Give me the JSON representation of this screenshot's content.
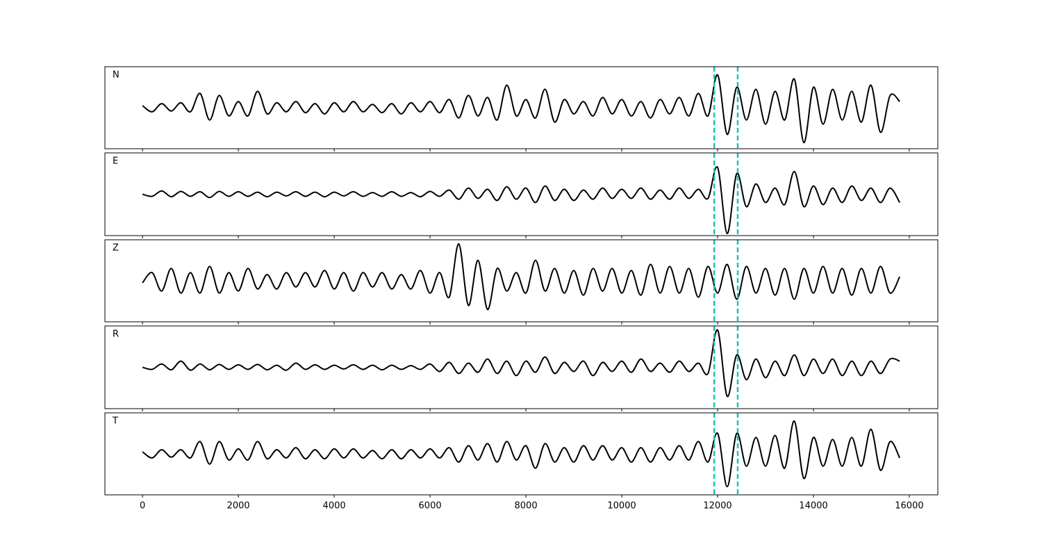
{
  "chart_data": {
    "type": "line",
    "x": [
      0,
      200,
      400,
      600,
      800,
      1000,
      1200,
      1400,
      1600,
      1800,
      2000,
      2200,
      2400,
      2600,
      2800,
      3000,
      3200,
      3400,
      3600,
      3800,
      4000,
      4200,
      4400,
      4600,
      4800,
      5000,
      5200,
      5400,
      5600,
      5800,
      6000,
      6200,
      6400,
      6600,
      6800,
      7000,
      7200,
      7400,
      7600,
      7800,
      8000,
      8200,
      8400,
      8600,
      8800,
      9000,
      9200,
      9400,
      9600,
      9800,
      10000,
      10200,
      10400,
      10600,
      10800,
      11000,
      11200,
      11400,
      11600,
      11800,
      12000,
      12200,
      12400,
      12600,
      12800,
      13000,
      13200,
      13400,
      13600,
      13800,
      14000,
      14200,
      14400,
      14600,
      14800,
      15000,
      15200,
      15400,
      15600,
      15800
    ],
    "series": [
      {
        "name": "N",
        "color": "#000000",
        "values": [
          0.05,
          -0.1,
          0.1,
          -0.08,
          0.12,
          -0.1,
          0.35,
          -0.3,
          0.3,
          -0.2,
          0.15,
          -0.2,
          0.4,
          -0.15,
          0.12,
          -0.1,
          0.15,
          -0.12,
          0.1,
          -0.15,
          0.12,
          -0.1,
          0.15,
          -0.1,
          0.08,
          -0.12,
          0.1,
          -0.15,
          0.12,
          -0.1,
          0.15,
          -0.12,
          0.2,
          -0.25,
          0.3,
          -0.2,
          0.25,
          -0.3,
          0.55,
          -0.2,
          0.2,
          -0.25,
          0.45,
          -0.35,
          0.2,
          -0.15,
          0.15,
          -0.2,
          0.25,
          -0.15,
          0.2,
          -0.2,
          0.15,
          -0.25,
          0.2,
          -0.15,
          0.25,
          -0.2,
          0.35,
          -0.2,
          0.8,
          -0.65,
          0.5,
          -0.3,
          0.45,
          -0.4,
          0.4,
          -0.3,
          0.7,
          -0.85,
          0.5,
          -0.4,
          0.45,
          -0.3,
          0.4,
          -0.35,
          0.55,
          -0.6,
          0.3,
          0.15
        ]
      },
      {
        "name": "E",
        "color": "#000000",
        "values": [
          0.0,
          -0.05,
          0.08,
          -0.06,
          0.07,
          -0.05,
          0.06,
          -0.08,
          0.07,
          -0.05,
          0.06,
          -0.05,
          0.05,
          -0.06,
          0.05,
          -0.04,
          0.06,
          -0.05,
          0.05,
          -0.06,
          0.05,
          -0.04,
          0.06,
          -0.05,
          0.04,
          -0.05,
          0.06,
          -0.05,
          0.04,
          -0.06,
          0.07,
          -0.05,
          0.1,
          -0.12,
          0.15,
          -0.1,
          0.12,
          -0.15,
          0.18,
          -0.12,
          0.15,
          -0.2,
          0.2,
          -0.15,
          0.12,
          -0.15,
          0.1,
          -0.12,
          0.15,
          -0.1,
          0.12,
          -0.1,
          0.15,
          -0.12,
          0.1,
          -0.12,
          0.15,
          -0.1,
          0.12,
          -0.1,
          0.65,
          -0.95,
          0.5,
          -0.3,
          0.25,
          -0.2,
          0.15,
          -0.25,
          0.55,
          -0.3,
          0.2,
          -0.25,
          0.15,
          -0.2,
          0.2,
          -0.15,
          0.15,
          -0.2,
          0.15,
          -0.2
        ]
      },
      {
        "name": "Z",
        "color": "#000000",
        "values": [
          -0.05,
          0.2,
          -0.25,
          0.3,
          -0.3,
          0.2,
          -0.3,
          0.35,
          -0.3,
          0.2,
          -0.25,
          0.3,
          -0.2,
          0.15,
          -0.2,
          0.2,
          -0.15,
          0.2,
          -0.15,
          0.25,
          -0.2,
          0.2,
          -0.25,
          0.2,
          -0.15,
          0.2,
          -0.2,
          0.15,
          -0.2,
          0.25,
          -0.3,
          0.2,
          -0.4,
          0.9,
          -0.6,
          0.5,
          -0.7,
          0.3,
          -0.25,
          0.2,
          -0.3,
          0.5,
          -0.25,
          0.3,
          -0.3,
          0.25,
          -0.35,
          0.3,
          -0.25,
          0.3,
          -0.3,
          0.25,
          -0.35,
          0.4,
          -0.3,
          0.35,
          -0.3,
          0.3,
          -0.4,
          0.35,
          -0.3,
          0.4,
          -0.45,
          0.35,
          -0.3,
          0.3,
          -0.35,
          0.3,
          -0.45,
          0.3,
          -0.3,
          0.35,
          -0.3,
          0.3,
          -0.35,
          0.3,
          -0.3,
          0.35,
          -0.3,
          0.1
        ]
      },
      {
        "name": "R",
        "color": "#000000",
        "values": [
          0.0,
          -0.05,
          0.08,
          -0.06,
          0.15,
          -0.07,
          0.08,
          -0.06,
          0.07,
          -0.05,
          0.06,
          -0.05,
          0.07,
          -0.06,
          0.05,
          -0.07,
          0.1,
          -0.05,
          0.06,
          -0.05,
          0.05,
          -0.04,
          0.06,
          -0.05,
          0.05,
          -0.06,
          0.05,
          -0.05,
          0.04,
          -0.05,
          0.08,
          -0.1,
          0.12,
          -0.15,
          0.1,
          -0.12,
          0.2,
          -0.15,
          0.15,
          -0.2,
          0.15,
          -0.12,
          0.25,
          -0.15,
          0.12,
          -0.1,
          0.15,
          -0.2,
          0.12,
          -0.1,
          0.15,
          -0.12,
          0.2,
          -0.1,
          0.1,
          -0.12,
          0.15,
          -0.1,
          0.1,
          -0.15,
          0.9,
          -0.7,
          0.3,
          -0.3,
          0.2,
          -0.25,
          0.15,
          -0.2,
          0.3,
          -0.2,
          0.2,
          -0.15,
          0.2,
          -0.2,
          0.15,
          -0.2,
          0.15,
          -0.15,
          0.2,
          0.15
        ]
      },
      {
        "name": "T",
        "color": "#000000",
        "values": [
          0.05,
          -0.1,
          0.1,
          -0.08,
          0.1,
          -0.1,
          0.3,
          -0.25,
          0.3,
          -0.15,
          0.12,
          -0.15,
          0.3,
          -0.12,
          0.1,
          -0.1,
          0.15,
          -0.12,
          0.1,
          -0.12,
          0.12,
          -0.1,
          0.12,
          -0.1,
          0.08,
          -0.12,
          0.1,
          -0.12,
          0.1,
          -0.1,
          0.12,
          -0.1,
          0.15,
          -0.2,
          0.2,
          -0.15,
          0.25,
          -0.2,
          0.3,
          -0.15,
          0.2,
          -0.35,
          0.25,
          -0.2,
          0.15,
          -0.2,
          0.2,
          -0.15,
          0.2,
          -0.15,
          0.15,
          -0.2,
          0.15,
          -0.2,
          0.15,
          -0.15,
          0.2,
          -0.15,
          0.3,
          -0.2,
          0.5,
          -0.8,
          0.5,
          -0.3,
          0.4,
          -0.3,
          0.45,
          -0.35,
          0.8,
          -0.6,
          0.4,
          -0.3,
          0.35,
          -0.3,
          0.4,
          -0.3,
          0.6,
          -0.4,
          0.3,
          -0.1
        ]
      }
    ],
    "xlim": [
      -785,
      16595
    ],
    "xticks": [
      0,
      2000,
      4000,
      6000,
      8000,
      10000,
      12000,
      14000,
      16000
    ],
    "ylim": [
      -1,
      1
    ],
    "vlines": [
      11930,
      12420
    ],
    "vline_color": "#17c3b2"
  }
}
